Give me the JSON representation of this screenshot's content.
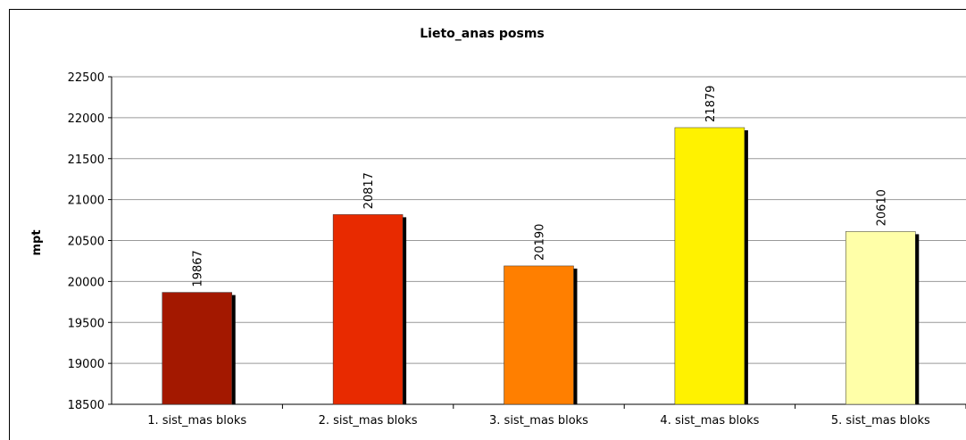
{
  "chart_data": {
    "type": "bar",
    "title": "Lieto_anas posms",
    "y_label": "mpt",
    "categories": [
      "1. sist_mas bloks",
      "2. sist_mas bloks",
      "3. sist_mas bloks",
      "4. sist_mas bloks",
      "5. sist_mas bloks"
    ],
    "values": [
      19867,
      20817,
      20190,
      21879,
      20610
    ],
    "colors": [
      "#a31800",
      "#e82a00",
      "#ff7f00",
      "#fff200",
      "#ffffa8"
    ],
    "ylim": [
      18500,
      22500
    ],
    "yticks": [
      18500,
      19000,
      19500,
      20000,
      20500,
      21000,
      21500,
      22000,
      22500
    ],
    "grid": true
  }
}
